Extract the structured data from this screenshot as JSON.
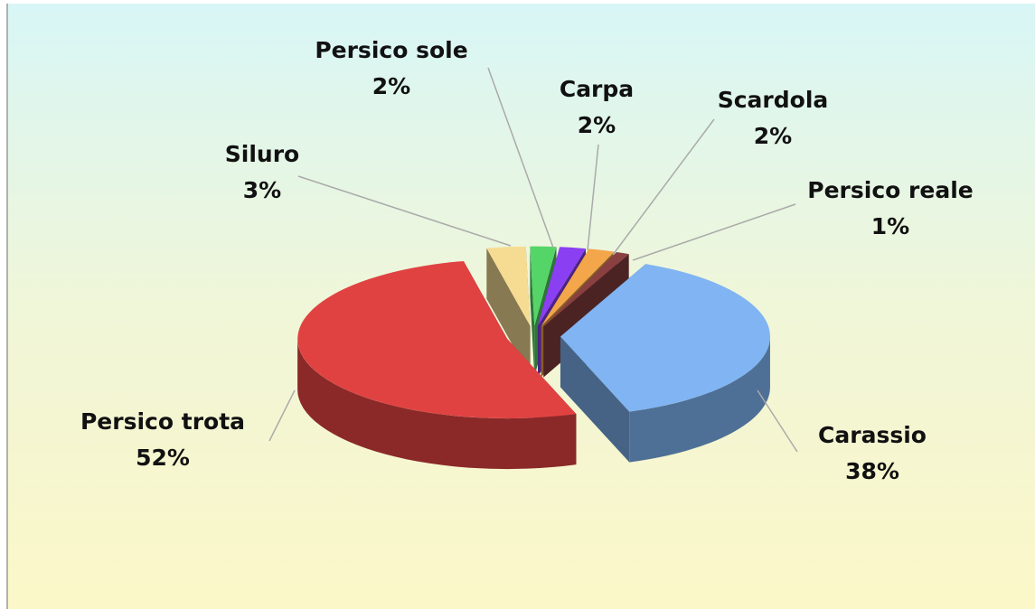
{
  "chart_data": {
    "type": "pie3d",
    "categories": [
      "Siluro",
      "Persico sole",
      "Carpa",
      "Scardola",
      "Persico reale",
      "Carassio",
      "Persico trota"
    ],
    "values": [
      3,
      2,
      2,
      2,
      1,
      38,
      52
    ],
    "value_labels": [
      "3%",
      "2%",
      "2%",
      "2%",
      "1%",
      "38%",
      "52%"
    ],
    "colors": [
      "#f6dc93",
      "#55d567",
      "#8b3ff2",
      "#f4a64a",
      "#8a4040",
      "#80b4f2",
      "#e04242"
    ]
  }
}
